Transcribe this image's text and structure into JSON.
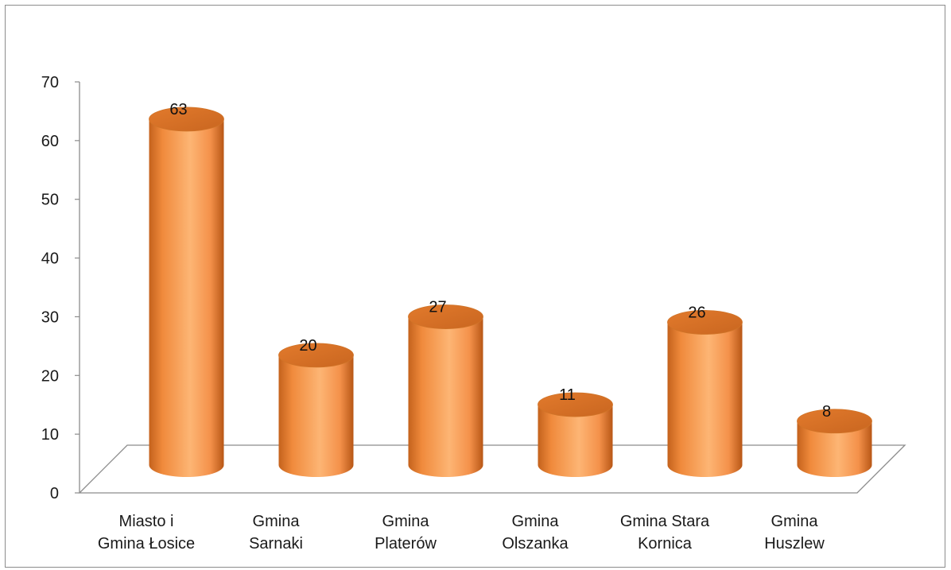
{
  "chart_data": {
    "type": "bar",
    "style": "3d-cylinder",
    "title": "",
    "xlabel": "",
    "ylabel": "",
    "ylim": [
      0,
      70
    ],
    "yticks": [
      0,
      10,
      20,
      30,
      40,
      50,
      60,
      70
    ],
    "grid": false,
    "legend": "none",
    "bar_color": "#F79646",
    "categories": [
      [
        "Miasto i",
        "Gmina Łosice"
      ],
      [
        "Gmina",
        "Sarnaki"
      ],
      [
        "Gmina",
        "Platerów"
      ],
      [
        "Gmina",
        "Olszanka"
      ],
      [
        "Gmina Stara",
        "Kornica"
      ],
      [
        "Gmina",
        "Huszlew"
      ]
    ],
    "values": [
      63,
      20,
      27,
      11,
      26,
      8
    ],
    "data_labels": [
      "63",
      "20",
      "27",
      "11",
      "26",
      "8"
    ]
  }
}
